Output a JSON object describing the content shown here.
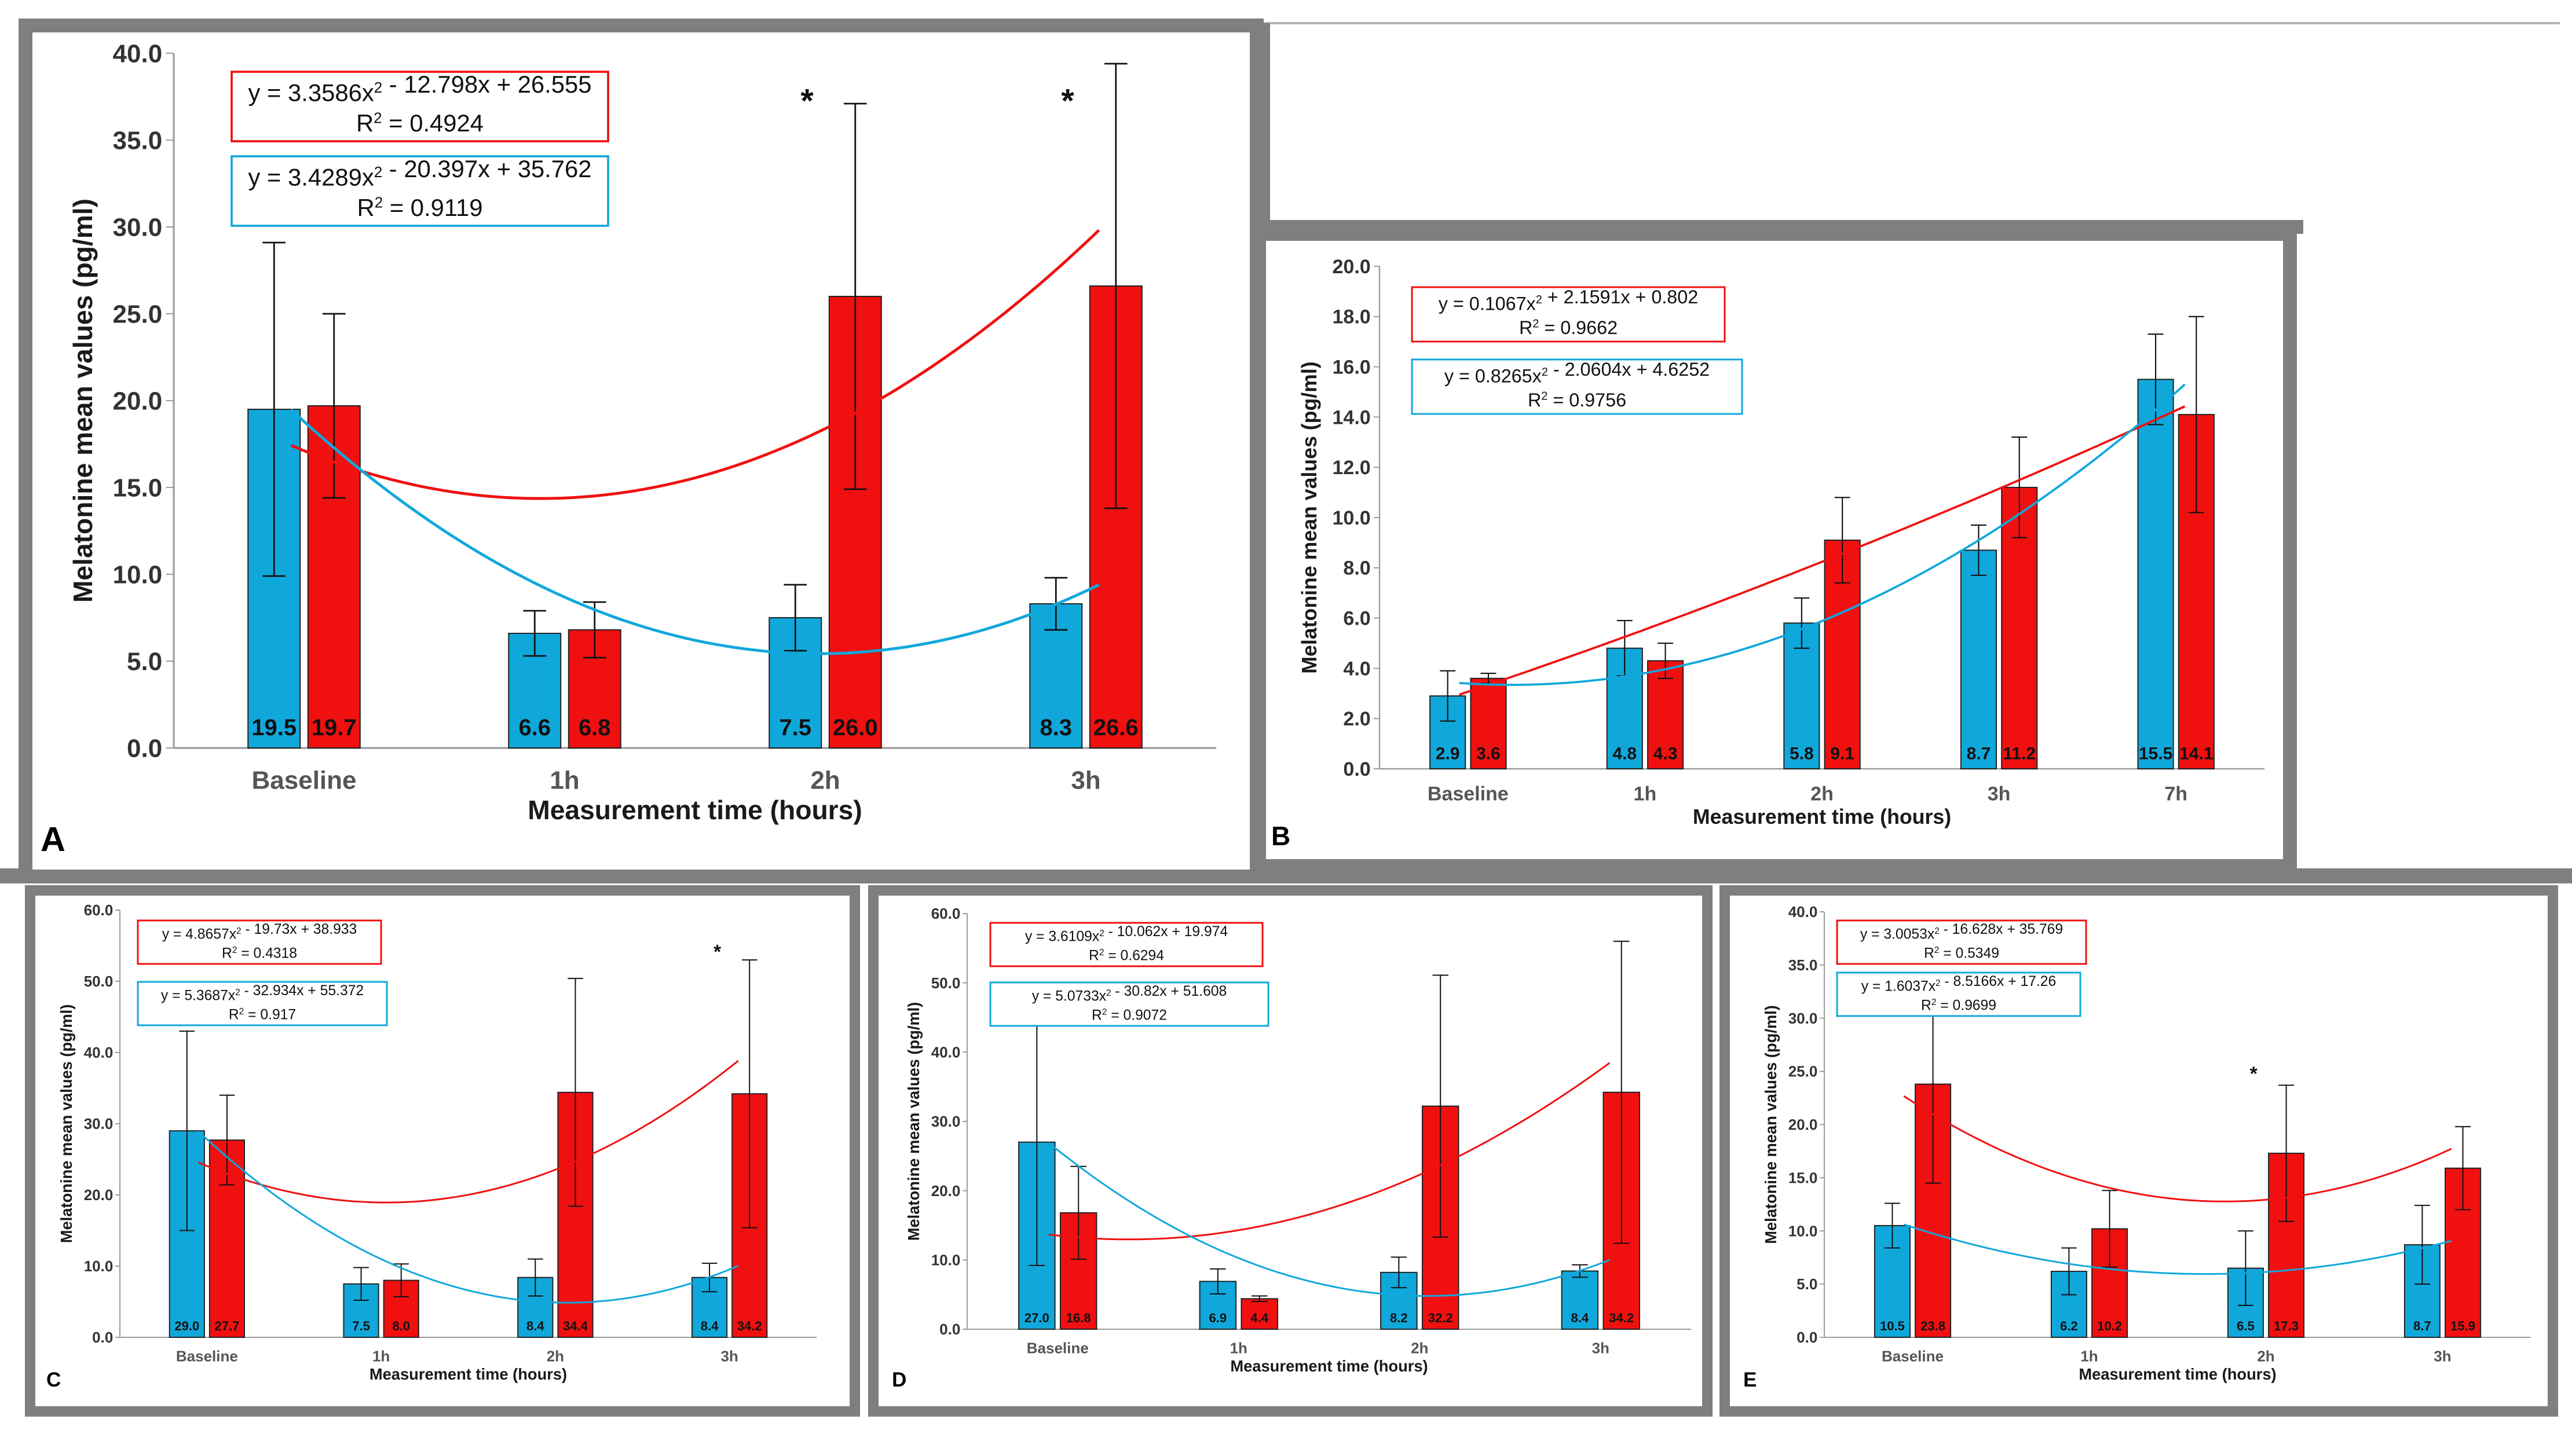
{
  "colors": {
    "blue": "#10A8DB",
    "red": "#F01010",
    "frame": "#7F7F7F",
    "axis": "#9C9C9C",
    "text": "#1A1A1A"
  },
  "chart_data": [
    {
      "panel_letter": "A",
      "type": "bar",
      "categories": [
        "Baseline",
        "1h",
        "2h",
        "3h"
      ],
      "xlabel": "Measurement time (hours)",
      "ylabel": "Melatonine mean values (pg/ml)",
      "ylim": [
        0,
        40
      ],
      "ytick_step": 5,
      "ytick_labels": [
        "0.0",
        "5.0",
        "10.0",
        "15.0",
        "20.0",
        "25.0",
        "30.0",
        "35.0",
        "40.0"
      ],
      "grid": false,
      "series": [
        {
          "color": "blue",
          "values": [
            19.5,
            6.6,
            7.5,
            8.3
          ],
          "value_labels": [
            "19.5",
            "6.6",
            "7.5",
            "8.3"
          ],
          "error": [
            9.6,
            1.3,
            1.9,
            1.5
          ]
        },
        {
          "color": "red",
          "values": [
            19.7,
            6.8,
            26.0,
            26.6
          ],
          "value_labels": [
            "19.7",
            "6.8",
            "26.0",
            "26.6"
          ],
          "error": [
            5.3,
            1.6,
            11.1,
            12.8
          ]
        }
      ],
      "trendlines": [
        {
          "color": "red",
          "a": 3.3586,
          "b": -12.798,
          "c": 26.555,
          "equation": "y = 3.3586x² - 12.798x + 26.555",
          "r2": "R² = 0.4924"
        },
        {
          "color": "blue",
          "a": 3.4289,
          "b": -20.397,
          "c": 35.762,
          "equation": "y = 3.4289x² - 20.397x + 35.762",
          "r2": "R² = 0.9119"
        }
      ],
      "significance": [
        {
          "category_index": 2,
          "label": "*",
          "y": 37.5
        },
        {
          "category_index": 3,
          "label": "*",
          "y": 37.5
        }
      ]
    },
    {
      "panel_letter": "B",
      "type": "bar",
      "categories": [
        "Baseline",
        "1h",
        "2h",
        "3h",
        "7h"
      ],
      "xlabel": "Measurement time (hours)",
      "ylabel": "Melatonine mean values (pg/ml)",
      "ylim": [
        0,
        20
      ],
      "ytick_step": 2,
      "ytick_labels": [
        "0.0",
        "2.0",
        "4.0",
        "6.0",
        "8.0",
        "10.0",
        "12.0",
        "14.0",
        "16.0",
        "18.0",
        "20.0"
      ],
      "grid": false,
      "series": [
        {
          "color": "blue",
          "values": [
            2.9,
            4.8,
            5.8,
            8.7,
            15.5
          ],
          "value_labels": [
            "2.9",
            "4.8",
            "5.8",
            "8.7",
            "15.5"
          ],
          "error": [
            1.0,
            1.1,
            1.0,
            1.0,
            1.8
          ]
        },
        {
          "color": "red",
          "values": [
            3.6,
            4.3,
            9.1,
            11.2,
            14.1
          ],
          "value_labels": [
            "3.6",
            "4.3",
            "9.1",
            "11.2",
            "14.1"
          ],
          "error": [
            0.2,
            0.7,
            1.7,
            2.0,
            3.9
          ]
        }
      ],
      "trendlines": [
        {
          "color": "red",
          "a": 0.1067,
          "b": 2.1591,
          "c": 0.802,
          "equation": "y = 0.1067x² + 2.1591x + 0.802",
          "r2": "R² = 0.9662"
        },
        {
          "color": "blue",
          "a": 0.8265,
          "b": -2.0604,
          "c": 4.6252,
          "equation": "y = 0.8265x² - 2.0604x + 4.6252",
          "r2": "R² = 0.9756"
        }
      ],
      "significance": []
    },
    {
      "panel_letter": "C",
      "type": "bar",
      "categories": [
        "Baseline",
        "1h",
        "2h",
        "3h"
      ],
      "xlabel": "Measurement time (hours)",
      "ylabel": "Melatonine mean values (pg/ml)",
      "ylim": [
        0,
        60
      ],
      "ytick_step": 10,
      "ytick_labels": [
        "0.0",
        "10.0",
        "20.0",
        "30.0",
        "40.0",
        "50.0",
        "60.0"
      ],
      "grid": false,
      "series": [
        {
          "color": "blue",
          "values": [
            29.0,
            7.5,
            8.4,
            8.4
          ],
          "value_labels": [
            "29.0",
            "7.5",
            "8.4",
            "8.4"
          ],
          "error": [
            14.0,
            2.3,
            2.6,
            2.0
          ]
        },
        {
          "color": "red",
          "values": [
            27.7,
            8.0,
            34.4,
            34.2
          ],
          "value_labels": [
            "27.7",
            "8.0",
            "34.4",
            "34.2"
          ],
          "error": [
            6.3,
            2.3,
            16.0,
            18.8
          ]
        }
      ],
      "trendlines": [
        {
          "color": "red",
          "a": 4.8657,
          "b": -19.73,
          "c": 38.933,
          "equation": "y = 4.8657x² - 19.73x + 38.933",
          "r2": "R² = 0.4318"
        },
        {
          "color": "blue",
          "a": 5.3687,
          "b": -32.934,
          "c": 55.372,
          "equation": "y = 5.3687x² - 32.934x + 55.372",
          "r2": "R² = 0.917"
        }
      ],
      "significance": [
        {
          "category_index": 3,
          "label": "*",
          "y": 54.5
        }
      ]
    },
    {
      "panel_letter": "D",
      "type": "bar",
      "categories": [
        "Baseline",
        "1h",
        "2h",
        "3h"
      ],
      "xlabel": "Measurement time (hours)",
      "ylabel": "Melatonine mean values (pg/ml)",
      "ylim": [
        0,
        60
      ],
      "ytick_step": 10,
      "ytick_labels": [
        "0.0",
        "10.0",
        "20.0",
        "30.0",
        "40.0",
        "50.0",
        "60.0"
      ],
      "grid": false,
      "series": [
        {
          "color": "blue",
          "values": [
            27.0,
            6.9,
            8.2,
            8.4
          ],
          "value_labels": [
            "27.0",
            "6.9",
            "8.2",
            "8.4"
          ],
          "error": [
            17.8,
            1.8,
            2.2,
            0.9
          ]
        },
        {
          "color": "red",
          "values": [
            16.8,
            4.4,
            32.2,
            34.2
          ],
          "value_labels": [
            "16.8",
            "4.4",
            "32.2",
            "34.2"
          ],
          "error": [
            6.7,
            0.4,
            18.9,
            21.8
          ]
        }
      ],
      "trendlines": [
        {
          "color": "red",
          "a": 3.6109,
          "b": -10.062,
          "c": 19.974,
          "equation": "y = 3.6109x² - 10.062x + 19.974",
          "r2": "R² = 0.6294"
        },
        {
          "color": "blue",
          "a": 5.0733,
          "b": -30.82,
          "c": 51.608,
          "equation": "y = 5.0733x² - 30.82x + 51.608",
          "r2": "R² = 0.9072"
        }
      ],
      "significance": []
    },
    {
      "panel_letter": "E",
      "type": "bar",
      "categories": [
        "Baseline",
        "1h",
        "2h",
        "3h"
      ],
      "xlabel": "Measurement time (hours)",
      "ylabel": "Melatonine mean values (pg/ml)",
      "ylim": [
        0,
        40
      ],
      "ytick_step": 5,
      "ytick_labels": [
        "0.0",
        "5.0",
        "10.0",
        "15.0",
        "20.0",
        "25.0",
        "30.0",
        "35.0",
        "40.0"
      ],
      "grid": false,
      "series": [
        {
          "color": "blue",
          "values": [
            10.5,
            6.2,
            6.5,
            8.7
          ],
          "value_labels": [
            "10.5",
            "6.2",
            "6.5",
            "8.7"
          ],
          "error": [
            2.1,
            2.2,
            3.5,
            3.7
          ]
        },
        {
          "color": "red",
          "values": [
            23.8,
            10.2,
            17.3,
            15.9
          ],
          "value_labels": [
            "23.8",
            "10.2",
            "17.3",
            "15.9"
          ],
          "error": [
            9.3,
            3.6,
            6.4,
            3.9
          ]
        }
      ],
      "trendlines": [
        {
          "color": "red",
          "a": 3.0053,
          "b": -16.628,
          "c": 35.769,
          "equation": "y = 3.0053x² - 16.628x + 35.769",
          "r2": "R² = 0.5349"
        },
        {
          "color": "blue",
          "a": 1.6037,
          "b": -8.5166,
          "c": 17.26,
          "equation": "y = 1.6037x² - 8.5166x + 17.26",
          "r2": "R² = 0.9699"
        }
      ],
      "significance": [
        {
          "category_index": 2,
          "label": "*",
          "y": 25.0
        }
      ]
    }
  ]
}
